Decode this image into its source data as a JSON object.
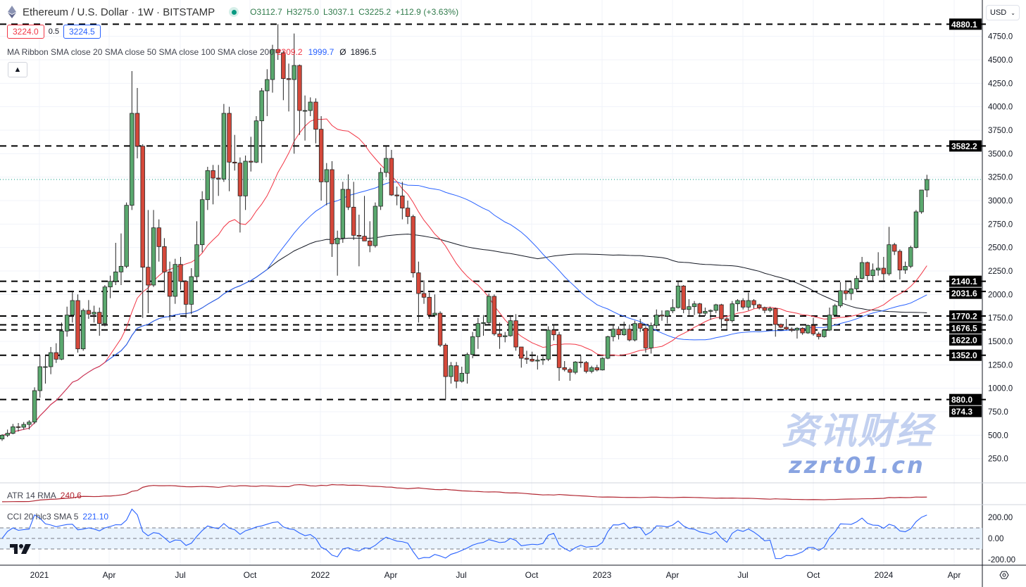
{
  "header": {
    "title": "Ethereum / U.S. Dollar · 1W · BITSTAMP",
    "icon": "ethereum-icon",
    "status_color": "#089981",
    "open": "O3112.7",
    "high": "H3275.0",
    "low": "L3037.1",
    "close": "C3225.2",
    "change": "+112.9 (+3.63%)"
  },
  "trade": {
    "bid": "3224.0",
    "spread": "0.5",
    "ask": "3224.5"
  },
  "ma_ribbon": {
    "label": "MA Ribbon SMA close 20 SMA close 50 SMA close 100 SMA close 200",
    "v20": "2309.2",
    "v50": "1999.7",
    "v100": "Ø",
    "v200": "1896.5",
    "colors": {
      "sma20": "#f23645",
      "sma50": "#2962ff",
      "sma200": "#131722"
    }
  },
  "currency": "USD",
  "collapse_icon": "chevron-up-icon",
  "atr": {
    "label": "ATR 14 RMA",
    "value": "240.6",
    "color": "#b22833"
  },
  "cci": {
    "label": "CCI 20 hlc3 SMA 5",
    "value": "221.10",
    "color": "#2962ff",
    "ticks": [
      "200.00",
      "0.00",
      "-200.00"
    ]
  },
  "watermark": {
    "cn": "资讯财经",
    "url": "zzrt01.cn"
  },
  "settings_icon": "gear-icon",
  "chart_data": {
    "type": "candlestick",
    "title": "Ethereum / U.S. Dollar · 1W · BITSTAMP",
    "ylim": [
      0,
      5000
    ],
    "grid": true,
    "y_ticks": [
      "4750.0",
      "4500.0",
      "4250.0",
      "4000.0",
      "3750.0",
      "3500.0",
      "3250.0",
      "3000.0",
      "2750.0",
      "2500.0",
      "2250.0",
      "2000.0",
      "1750.0",
      "1500.0",
      "1250.0",
      "1000.0",
      "750.0",
      "500.0",
      "250.0"
    ],
    "x_ticks": [
      "2021",
      "Apr",
      "Jul",
      "Oct",
      "2022",
      "Apr",
      "Jul",
      "Oct",
      "2023",
      "Apr",
      "Jul",
      "Oct",
      "2024",
      "Apr"
    ],
    "last_price": 3225.2,
    "levels": [
      {
        "value": 4880.1,
        "label": "4880.1",
        "line": true
      },
      {
        "value": 3582.2,
        "label": "3582.2",
        "line": true
      },
      {
        "value": 2140.1,
        "label": "2140.1",
        "line": true
      },
      {
        "value": 2031.6,
        "label": "2031.6",
        "line": true
      },
      {
        "value": 1770.2,
        "label": "1770.2",
        "line": true
      },
      {
        "value": 1676.5,
        "label": "1676.5",
        "line": true
      },
      {
        "value": 1622.0,
        "label": "1622.0",
        "line": true
      },
      {
        "value": 1352.0,
        "label": "1352.0",
        "line": true
      },
      {
        "value": 880.0,
        "label": "880.0",
        "line": true
      },
      {
        "value": 874.3,
        "label": "874.3",
        "line": false
      }
    ],
    "candles_ohlc": [
      [
        460,
        510,
        440,
        500
      ],
      [
        500,
        560,
        480,
        520
      ],
      [
        520,
        620,
        510,
        590
      ],
      [
        590,
        630,
        540,
        585
      ],
      [
        585,
        640,
        560,
        615
      ],
      [
        615,
        660,
        560,
        640
      ],
      [
        640,
        1010,
        620,
        975
      ],
      [
        975,
        1350,
        900,
        1230
      ],
      [
        1230,
        1350,
        1050,
        1230
      ],
      [
        1230,
        1440,
        1150,
        1380
      ],
      [
        1380,
        1480,
        1270,
        1310
      ],
      [
        1310,
        1700,
        1300,
        1610
      ],
      [
        1610,
        1870,
        1550,
        1780
      ],
      [
        1780,
        2040,
        1700,
        1935
      ],
      [
        1935,
        2000,
        1380,
        1420
      ],
      [
        1420,
        1850,
        1400,
        1830
      ],
      [
        1830,
        1940,
        1740,
        1790
      ],
      [
        1790,
        1880,
        1700,
        1810
      ],
      [
        1810,
        1860,
        1560,
        1690
      ],
      [
        1690,
        2100,
        1660,
        2080
      ],
      [
        2080,
        2200,
        1960,
        2140
      ],
      [
        2140,
        2550,
        2100,
        2240
      ],
      [
        2240,
        2650,
        2100,
        2300
      ],
      [
        2300,
        2980,
        2280,
        2950
      ],
      [
        2950,
        4380,
        2900,
        3930
      ],
      [
        3930,
        4200,
        3450,
        3580
      ],
      [
        3580,
        3600,
        1750,
        2290
      ],
      [
        2290,
        2900,
        1800,
        2100
      ],
      [
        2100,
        2900,
        2080,
        2710
      ],
      [
        2710,
        2800,
        2350,
        2510
      ],
      [
        2510,
        2600,
        2020,
        2240
      ],
      [
        2240,
        2350,
        1720,
        1980
      ],
      [
        1980,
        2380,
        1900,
        2320
      ],
      [
        2320,
        2400,
        2050,
        2140
      ],
      [
        2140,
        2150,
        1750,
        1895
      ],
      [
        1895,
        2280,
        1790,
        2190
      ],
      [
        2190,
        2780,
        2150,
        2530
      ],
      [
        2530,
        3100,
        2450,
        3010
      ],
      [
        3010,
        3360,
        2900,
        3320
      ],
      [
        3320,
        3380,
        2960,
        3240
      ],
      [
        3240,
        3380,
        3050,
        3230
      ],
      [
        3230,
        4030,
        3200,
        3930
      ],
      [
        3930,
        4000,
        3100,
        3410
      ],
      [
        3410,
        3700,
        3320,
        3400
      ],
      [
        3400,
        3460,
        2660,
        3050
      ],
      [
        3050,
        3480,
        2900,
        3420
      ],
      [
        3420,
        3680,
        3310,
        3410
      ],
      [
        3410,
        3900,
        3400,
        3850
      ],
      [
        3850,
        4200,
        3400,
        4170
      ],
      [
        4170,
        4400,
        3900,
        4290
      ],
      [
        4290,
        4660,
        4150,
        4610
      ],
      [
        4610,
        4880,
        4500,
        4575
      ],
      [
        4575,
        4600,
        4070,
        4300
      ],
      [
        4300,
        4460,
        3950,
        4290
      ],
      [
        4290,
        4780,
        3500,
        4440
      ],
      [
        4440,
        4450,
        3700,
        3960
      ],
      [
        3960,
        4120,
        3640,
        3960
      ],
      [
        3960,
        4100,
        3900,
        4050
      ],
      [
        4050,
        4090,
        3610,
        3760
      ],
      [
        3760,
        3900,
        3000,
        3200
      ],
      [
        3200,
        3400,
        2950,
        3330
      ],
      [
        3330,
        3420,
        2400,
        2540
      ],
      [
        2540,
        2680,
        2200,
        2600
      ],
      [
        2600,
        3200,
        2550,
        3120
      ],
      [
        3120,
        3280,
        2900,
        2930
      ],
      [
        2930,
        3200,
        2580,
        2630
      ],
      [
        2630,
        2850,
        2300,
        2620
      ],
      [
        2620,
        3050,
        2580,
        2570
      ],
      [
        2570,
        2780,
        2450,
        2520
      ],
      [
        2520,
        2980,
        2500,
        2940
      ],
      [
        2940,
        3350,
        2900,
        3300
      ],
      [
        3300,
        3580,
        3250,
        3450
      ],
      [
        3450,
        3540,
        3050,
        3060
      ],
      [
        3060,
        3150,
        2950,
        3050
      ],
      [
        3050,
        3200,
        2800,
        2920
      ],
      [
        2920,
        3000,
        2750,
        2830
      ],
      [
        2830,
        2850,
        2180,
        2230
      ],
      [
        2230,
        2350,
        1700,
        2010
      ],
      [
        2010,
        2150,
        1900,
        1970
      ],
      [
        1970,
        2020,
        1740,
        1780
      ],
      [
        1780,
        2000,
        1760,
        1800
      ],
      [
        1800,
        1820,
        1440,
        1460
      ],
      [
        1460,
        1480,
        880,
        1125
      ],
      [
        1125,
        1280,
        1050,
        1240
      ],
      [
        1240,
        1280,
        1000,
        1075
      ],
      [
        1075,
        1230,
        1060,
        1160
      ],
      [
        1160,
        1380,
        1050,
        1360
      ],
      [
        1360,
        1600,
        1320,
        1550
      ],
      [
        1550,
        1750,
        1420,
        1690
      ],
      [
        1690,
        1780,
        1560,
        1700
      ],
      [
        1700,
        2010,
        1680,
        1980
      ],
      [
        1980,
        2000,
        1560,
        1580
      ],
      [
        1580,
        1700,
        1420,
        1550
      ],
      [
        1550,
        1600,
        1490,
        1560
      ],
      [
        1560,
        1780,
        1550,
        1720
      ],
      [
        1720,
        1790,
        1400,
        1440
      ],
      [
        1440,
        1440,
        1220,
        1320
      ],
      [
        1320,
        1400,
        1260,
        1310
      ],
      [
        1310,
        1390,
        1280,
        1290
      ],
      [
        1290,
        1350,
        1200,
        1300
      ],
      [
        1300,
        1340,
        1250,
        1310
      ],
      [
        1310,
        1660,
        1290,
        1620
      ],
      [
        1620,
        1680,
        1510,
        1570
      ],
      [
        1570,
        1600,
        1080,
        1220
      ],
      [
        1220,
        1290,
        1180,
        1200
      ],
      [
        1200,
        1220,
        1080,
        1170
      ],
      [
        1170,
        1290,
        1150,
        1280
      ],
      [
        1280,
        1350,
        1220,
        1275
      ],
      [
        1275,
        1290,
        1160,
        1180
      ],
      [
        1180,
        1240,
        1160,
        1220
      ],
      [
        1220,
        1250,
        1180,
        1195
      ],
      [
        1195,
        1330,
        1190,
        1320
      ],
      [
        1320,
        1560,
        1310,
        1550
      ],
      [
        1550,
        1680,
        1500,
        1630
      ],
      [
        1630,
        1660,
        1520,
        1570
      ],
      [
        1570,
        1710,
        1560,
        1630
      ],
      [
        1630,
        1680,
        1500,
        1515
      ],
      [
        1515,
        1720,
        1500,
        1690
      ],
      [
        1690,
        1740,
        1600,
        1640
      ],
      [
        1640,
        1660,
        1380,
        1430
      ],
      [
        1430,
        1700,
        1370,
        1670
      ],
      [
        1670,
        1840,
        1640,
        1780
      ],
      [
        1780,
        1830,
        1720,
        1770
      ],
      [
        1770,
        1830,
        1690,
        1825
      ],
      [
        1825,
        1950,
        1800,
        1860
      ],
      [
        1860,
        2140,
        1850,
        2090
      ],
      [
        2090,
        2100,
        1800,
        1840
      ],
      [
        1840,
        1950,
        1780,
        1870
      ],
      [
        1870,
        1930,
        1780,
        1900
      ],
      [
        1900,
        1910,
        1760,
        1800
      ],
      [
        1800,
        1860,
        1770,
        1820
      ],
      [
        1820,
        1840,
        1730,
        1830
      ],
      [
        1830,
        1900,
        1800,
        1890
      ],
      [
        1890,
        1900,
        1640,
        1740
      ],
      [
        1740,
        1760,
        1620,
        1720
      ],
      [
        1720,
        1930,
        1700,
        1900
      ],
      [
        1900,
        1950,
        1820,
        1935
      ],
      [
        1935,
        1960,
        1840,
        1865
      ],
      [
        1865,
        2020,
        1830,
        1935
      ],
      [
        1935,
        1950,
        1850,
        1890
      ],
      [
        1890,
        1900,
        1840,
        1860
      ],
      [
        1860,
        1870,
        1800,
        1830
      ],
      [
        1830,
        1870,
        1810,
        1850
      ],
      [
        1850,
        1860,
        1550,
        1680
      ],
      [
        1680,
        1690,
        1640,
        1650
      ],
      [
        1650,
        1740,
        1620,
        1630
      ],
      [
        1630,
        1650,
        1600,
        1620
      ],
      [
        1620,
        1650,
        1530,
        1640
      ],
      [
        1640,
        1650,
        1570,
        1590
      ],
      [
        1590,
        1680,
        1580,
        1670
      ],
      [
        1670,
        1750,
        1560,
        1580
      ],
      [
        1580,
        1600,
        1520,
        1550
      ],
      [
        1550,
        1630,
        1540,
        1620
      ],
      [
        1620,
        1860,
        1610,
        1780
      ],
      [
        1780,
        1900,
        1770,
        1880
      ],
      [
        1880,
        2130,
        1860,
        2040
      ],
      [
        2040,
        2130,
        1940,
        2010
      ],
      [
        2010,
        2140,
        1940,
        2060
      ],
      [
        2060,
        2200,
        2030,
        2170
      ],
      [
        2170,
        2400,
        2160,
        2340
      ],
      [
        2340,
        2350,
        2150,
        2200
      ],
      [
        2200,
        2330,
        2150,
        2260
      ],
      [
        2260,
        2450,
        2200,
        2280
      ],
      [
        2280,
        2400,
        2150,
        2220
      ],
      [
        2220,
        2720,
        2200,
        2530
      ],
      [
        2530,
        2550,
        2420,
        2460
      ],
      [
        2460,
        2480,
        2160,
        2260
      ],
      [
        2260,
        2350,
        2220,
        2300
      ],
      [
        2300,
        2520,
        2280,
        2500
      ],
      [
        2500,
        2900,
        2490,
        2880
      ],
      [
        2880,
        3030,
        2860,
        3112.7
      ],
      [
        3112.7,
        3275.0,
        3037.1,
        3225.2
      ]
    ]
  }
}
